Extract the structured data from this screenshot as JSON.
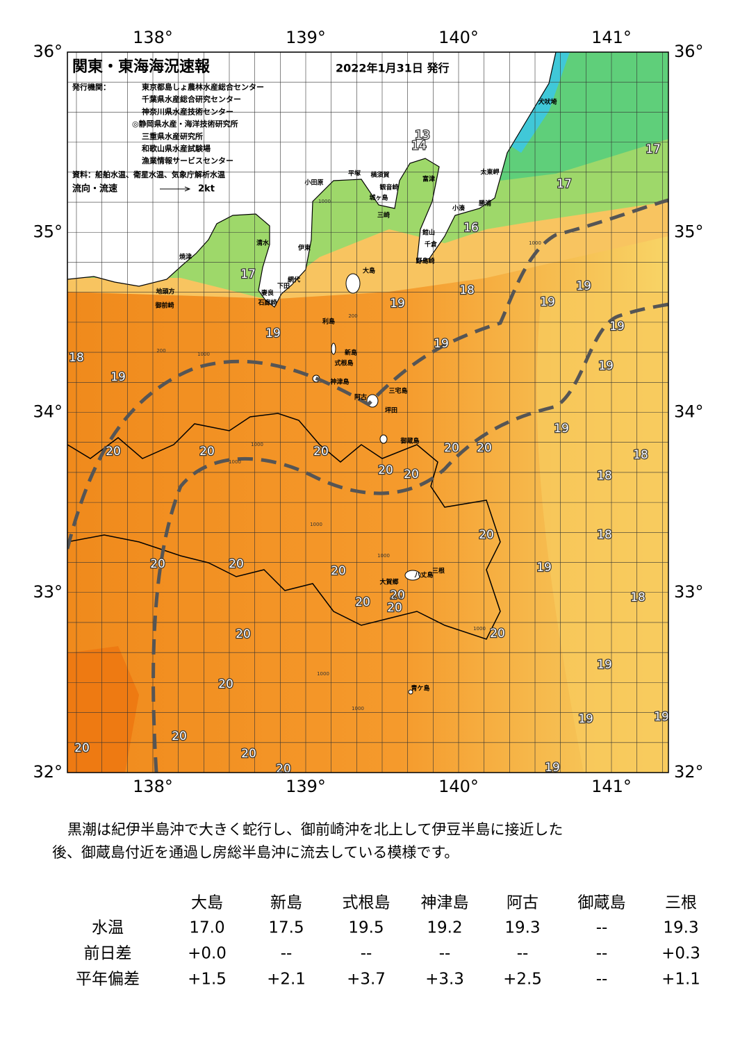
{
  "header": {
    "title": "関東・東海海況速報",
    "date": "2022年1月31日 発行",
    "issuer_label": "発行機関：",
    "issuers": [
      "東京都島しょ農林水産総合センター",
      "千葉県水産総合研究センター",
      "神奈川県水産技術センター",
      "◎静岡県水産・海洋技術研究所",
      "三重県水産研究所",
      "和歌山県水産試験場",
      "漁業情報サービスセンター"
    ],
    "source": "資料：船舶水温、衛星水温、気象庁解析水温",
    "flow_label": "流向・流速",
    "flow_scale": "2kt"
  },
  "map": {
    "lon_ticks": [
      {
        "value": 138,
        "label": "138°"
      },
      {
        "value": 139,
        "label": "139°"
      },
      {
        "value": 140,
        "label": "140°"
      },
      {
        "value": 141,
        "label": "141°"
      }
    ],
    "lat_ticks": [
      {
        "value": 36,
        "label": "36°"
      },
      {
        "value": 35,
        "label": "35°"
      },
      {
        "value": 34,
        "label": "34°"
      },
      {
        "value": 33,
        "label": "33°"
      },
      {
        "value": 32,
        "label": "32°"
      }
    ],
    "temperature_labels": [
      13,
      14,
      17,
      17,
      16,
      17,
      18,
      19,
      19,
      19,
      19,
      19,
      19,
      18,
      19,
      19,
      20,
      20,
      20,
      20,
      20,
      19,
      18,
      20,
      20,
      18,
      20,
      18,
      20,
      20,
      20,
      19,
      20,
      20,
      20,
      18,
      20,
      20,
      19,
      20,
      19,
      19,
      20,
      20,
      20,
      20,
      19
    ],
    "place_names": [
      "犬吠埼",
      "太東岬",
      "小田原",
      "平塚",
      "横須賀",
      "観音崎",
      "富津",
      "城ヶ島",
      "三崎",
      "小湊",
      "勝浦",
      "館山",
      "千倉",
      "野島崎",
      "清水",
      "伊東",
      "焼津",
      "大島",
      "網代",
      "下田",
      "地頭方",
      "御前崎",
      "妻良",
      "石廊崎",
      "利島",
      "新島",
      "式根島",
      "神津島",
      "三宅島",
      "阿古",
      "坪田",
      "御蔵島",
      "八丈島",
      "三根",
      "大賀郷",
      "青ケ島"
    ],
    "contour_labels": [
      "1000",
      "200",
      "1000",
      "200",
      "1000",
      "1000",
      "1000",
      "1000",
      "1000",
      "1000",
      "1000",
      "1000",
      "1000"
    ]
  },
  "description": [
    "黒潮は紀伊半島沖で大きく蛇行し、御前崎沖を北上して伊豆半島に接近した",
    "後、御蔵島付近を通過し房総半島沖に流去している模様です。"
  ],
  "table": {
    "columns": [
      "大島",
      "新島",
      "式根島",
      "神津島",
      "阿古",
      "御蔵島",
      "三根"
    ],
    "rows": [
      {
        "label": "水温",
        "cells": [
          "17.0",
          "17.5",
          "19.5",
          "19.2",
          "19.3",
          "--",
          "19.3"
        ]
      },
      {
        "label": "前日差",
        "cells": [
          "+0.0",
          "--",
          "--",
          "--",
          "--",
          "--",
          "+0.3"
        ]
      },
      {
        "label": "平年偏差",
        "cells": [
          "+1.5",
          "+2.1",
          "+3.7",
          "+3.3",
          "+2.5",
          "--",
          "+1.1"
        ]
      }
    ]
  }
}
